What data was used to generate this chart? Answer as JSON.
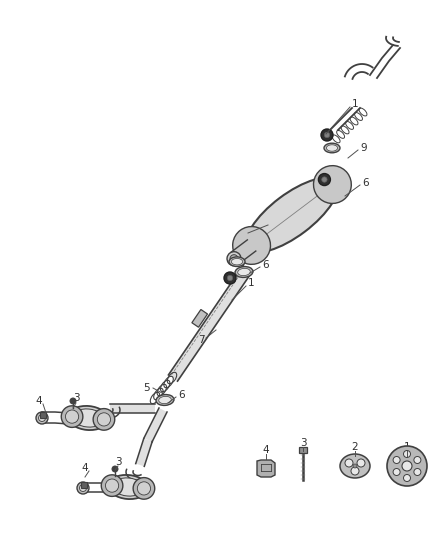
{
  "bg_color": "#ffffff",
  "line_color": "#404040",
  "figsize": [
    4.38,
    5.33
  ],
  "dpi": 100,
  "pipe_color": "#606060",
  "part_fill": "#aaaaaa",
  "dark_fill": "#333333"
}
